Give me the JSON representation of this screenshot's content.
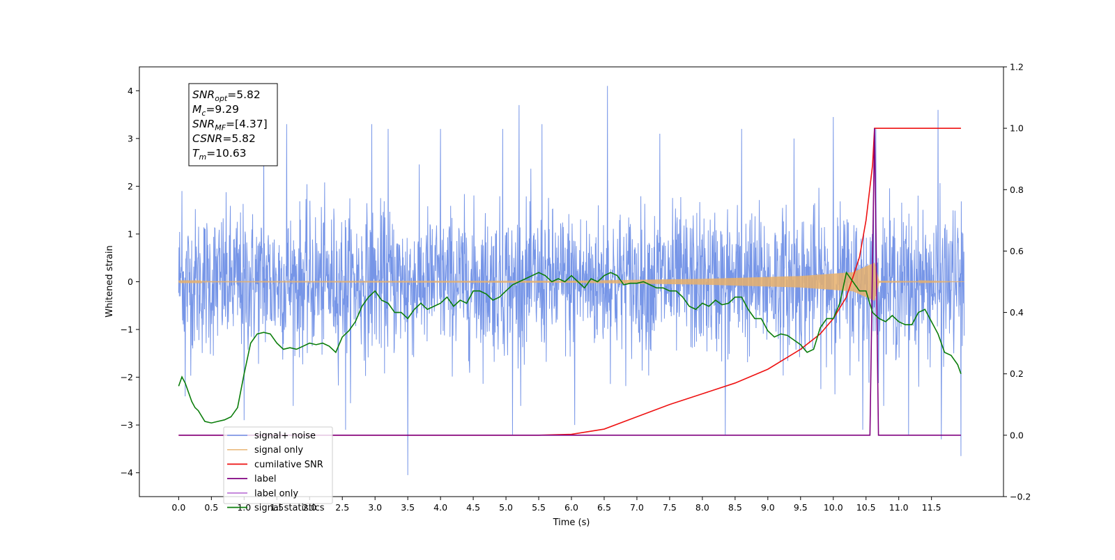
{
  "chart_data": {
    "type": "line",
    "xlabel": "Time (s)",
    "ylabel_left": "Whitened strain",
    "ylabel_right": "",
    "xlim": [
      -0.6,
      12.6
    ],
    "ylim_left": [
      -4.5,
      4.5
    ],
    "ylim_right": [
      -0.2,
      1.2
    ],
    "x_ticks": [
      "0.0",
      "0.5",
      "1.0",
      "1.5",
      "2.0",
      "2.5",
      "3.0",
      "3.5",
      "4.0",
      "4.5",
      "5.0",
      "5.5",
      "6.0",
      "6.5",
      "7.0",
      "7.5",
      "8.0",
      "8.5",
      "9.0",
      "9.5",
      "10.0",
      "10.5",
      "11.0",
      "11.5"
    ],
    "y_ticks_left": [
      "4",
      "3",
      "2",
      "1",
      "0",
      "−1",
      "−2",
      "−3",
      "−4"
    ],
    "y_ticks_right": [
      "1.2",
      "1.0",
      "0.8",
      "0.6",
      "0.4",
      "0.2",
      "0.0",
      "−0.2"
    ],
    "grid": false,
    "legend_position": "lower-left",
    "series": [
      {
        "name": "signal+ noise",
        "axis": "left",
        "color": "#6f8fe6",
        "style": "noise",
        "x_range": [
          0,
          12
        ],
        "std": 0.75,
        "spikes": [
          [
            0.05,
            1.9
          ],
          [
            0.1,
            -2.4
          ],
          [
            1.0,
            -2.9
          ],
          [
            1.3,
            3.0
          ],
          [
            1.65,
            3.3
          ],
          [
            2.55,
            -3.1
          ],
          [
            2.95,
            3.3
          ],
          [
            3.2,
            3.2
          ],
          [
            3.5,
            -4.05
          ],
          [
            4.0,
            3.2
          ],
          [
            4.95,
            3.2
          ],
          [
            5.1,
            -3.2
          ],
          [
            5.2,
            3.7
          ],
          [
            5.55,
            3.3
          ],
          [
            6.05,
            -3.0
          ],
          [
            6.55,
            4.1
          ],
          [
            7.35,
            3.1
          ],
          [
            8.35,
            -3.2
          ],
          [
            8.6,
            3.2
          ],
          [
            9.4,
            3.0
          ],
          [
            10.0,
            3.45
          ],
          [
            10.45,
            -3.1
          ],
          [
            10.65,
            3.2
          ],
          [
            11.15,
            -3.2
          ],
          [
            11.6,
            3.6
          ],
          [
            11.65,
            -3.3
          ],
          [
            11.95,
            -3.65
          ]
        ]
      },
      {
        "name": "signal only",
        "axis": "left",
        "color": "#e8b06b",
        "style": "chirp",
        "x_range": [
          0,
          12
        ],
        "merger_time": 10.63,
        "amp_points": [
          [
            0,
            0.01
          ],
          [
            6.0,
            0.02
          ],
          [
            8.0,
            0.06
          ],
          [
            9.5,
            0.12
          ],
          [
            10.3,
            0.2
          ],
          [
            10.63,
            0.4
          ],
          [
            10.7,
            0.02
          ],
          [
            12,
            0.0
          ]
        ]
      },
      {
        "name": "cumilative SNR",
        "axis": "right",
        "color": "#ee1111",
        "points": [
          [
            0.0,
            0.0
          ],
          [
            5.5,
            0.0
          ],
          [
            6.0,
            0.003
          ],
          [
            6.5,
            0.02
          ],
          [
            7.0,
            0.06
          ],
          [
            7.5,
            0.1
          ],
          [
            8.0,
            0.135
          ],
          [
            8.5,
            0.17
          ],
          [
            9.0,
            0.215
          ],
          [
            9.5,
            0.28
          ],
          [
            9.8,
            0.33
          ],
          [
            10.0,
            0.38
          ],
          [
            10.2,
            0.45
          ],
          [
            10.4,
            0.58
          ],
          [
            10.5,
            0.7
          ],
          [
            10.6,
            0.88
          ],
          [
            10.63,
            1.0
          ],
          [
            11.95,
            1.0
          ]
        ]
      },
      {
        "name": "label",
        "axis": "right",
        "color": "#800080",
        "points": [
          [
            0.0,
            0.0
          ],
          [
            10.56,
            0.0
          ],
          [
            10.63,
            1.0
          ],
          [
            10.69,
            0.0
          ],
          [
            11.95,
            0.0
          ]
        ]
      },
      {
        "name": "label only",
        "axis": "right",
        "color": "#c07ed8",
        "hidden": true,
        "points": []
      },
      {
        "name": "signal statistics",
        "axis": "right",
        "color": "#0a7d0a",
        "points": [
          [
            0.0,
            0.16
          ],
          [
            0.05,
            0.19
          ],
          [
            0.1,
            0.17
          ],
          [
            0.15,
            0.14
          ],
          [
            0.2,
            0.11
          ],
          [
            0.25,
            0.09
          ],
          [
            0.3,
            0.08
          ],
          [
            0.4,
            0.045
          ],
          [
            0.5,
            0.04
          ],
          [
            0.6,
            0.045
          ],
          [
            0.7,
            0.05
          ],
          [
            0.8,
            0.06
          ],
          [
            0.9,
            0.09
          ],
          [
            1.0,
            0.2
          ],
          [
            1.1,
            0.3
          ],
          [
            1.2,
            0.33
          ],
          [
            1.3,
            0.335
          ],
          [
            1.4,
            0.33
          ],
          [
            1.5,
            0.3
          ],
          [
            1.6,
            0.28
          ],
          [
            1.7,
            0.285
          ],
          [
            1.8,
            0.28
          ],
          [
            1.9,
            0.29
          ],
          [
            2.0,
            0.3
          ],
          [
            2.1,
            0.295
          ],
          [
            2.2,
            0.3
          ],
          [
            2.3,
            0.29
          ],
          [
            2.4,
            0.27
          ],
          [
            2.5,
            0.32
          ],
          [
            2.6,
            0.34
          ],
          [
            2.7,
            0.37
          ],
          [
            2.8,
            0.42
          ],
          [
            2.9,
            0.45
          ],
          [
            3.0,
            0.47
          ],
          [
            3.1,
            0.44
          ],
          [
            3.2,
            0.43
          ],
          [
            3.3,
            0.4
          ],
          [
            3.4,
            0.4
          ],
          [
            3.5,
            0.38
          ],
          [
            3.6,
            0.41
          ],
          [
            3.7,
            0.43
          ],
          [
            3.8,
            0.41
          ],
          [
            3.9,
            0.42
          ],
          [
            4.0,
            0.43
          ],
          [
            4.1,
            0.45
          ],
          [
            4.2,
            0.42
          ],
          [
            4.3,
            0.44
          ],
          [
            4.4,
            0.43
          ],
          [
            4.5,
            0.47
          ],
          [
            4.6,
            0.47
          ],
          [
            4.7,
            0.46
          ],
          [
            4.8,
            0.44
          ],
          [
            4.9,
            0.45
          ],
          [
            5.0,
            0.47
          ],
          [
            5.1,
            0.49
          ],
          [
            5.2,
            0.5
          ],
          [
            5.3,
            0.51
          ],
          [
            5.4,
            0.52
          ],
          [
            5.5,
            0.53
          ],
          [
            5.6,
            0.52
          ],
          [
            5.7,
            0.5
          ],
          [
            5.8,
            0.51
          ],
          [
            5.9,
            0.5
          ],
          [
            6.0,
            0.52
          ],
          [
            6.1,
            0.5
          ],
          [
            6.2,
            0.48
          ],
          [
            6.3,
            0.51
          ],
          [
            6.4,
            0.5
          ],
          [
            6.5,
            0.52
          ],
          [
            6.6,
            0.53
          ],
          [
            6.7,
            0.52
          ],
          [
            6.8,
            0.49
          ],
          [
            6.9,
            0.495
          ],
          [
            7.0,
            0.495
          ],
          [
            7.1,
            0.5
          ],
          [
            7.2,
            0.49
          ],
          [
            7.3,
            0.48
          ],
          [
            7.4,
            0.48
          ],
          [
            7.5,
            0.47
          ],
          [
            7.6,
            0.47
          ],
          [
            7.7,
            0.45
          ],
          [
            7.8,
            0.42
          ],
          [
            7.9,
            0.41
          ],
          [
            8.0,
            0.43
          ],
          [
            8.1,
            0.42
          ],
          [
            8.2,
            0.44
          ],
          [
            8.3,
            0.425
          ],
          [
            8.4,
            0.43
          ],
          [
            8.5,
            0.45
          ],
          [
            8.6,
            0.45
          ],
          [
            8.7,
            0.41
          ],
          [
            8.8,
            0.38
          ],
          [
            8.9,
            0.38
          ],
          [
            9.0,
            0.34
          ],
          [
            9.1,
            0.32
          ],
          [
            9.2,
            0.33
          ],
          [
            9.3,
            0.325
          ],
          [
            9.4,
            0.31
          ],
          [
            9.5,
            0.295
          ],
          [
            9.6,
            0.27
          ],
          [
            9.7,
            0.28
          ],
          [
            9.8,
            0.35
          ],
          [
            9.9,
            0.38
          ],
          [
            10.0,
            0.38
          ],
          [
            10.1,
            0.43
          ],
          [
            10.2,
            0.53
          ],
          [
            10.3,
            0.5
          ],
          [
            10.4,
            0.47
          ],
          [
            10.5,
            0.47
          ],
          [
            10.6,
            0.4
          ],
          [
            10.7,
            0.38
          ],
          [
            10.8,
            0.37
          ],
          [
            10.9,
            0.39
          ],
          [
            11.0,
            0.37
          ],
          [
            11.1,
            0.36
          ],
          [
            11.2,
            0.36
          ],
          [
            11.3,
            0.4
          ],
          [
            11.4,
            0.41
          ],
          [
            11.5,
            0.37
          ],
          [
            11.6,
            0.33
          ],
          [
            11.7,
            0.27
          ],
          [
            11.8,
            0.26
          ],
          [
            11.9,
            0.23
          ],
          [
            11.95,
            0.2
          ]
        ]
      }
    ],
    "annotations": [
      {
        "base": "SNR",
        "sub": "opt",
        "rest": "=5.82"
      },
      {
        "base": "M",
        "sub": "c",
        "rest": "=9.29"
      },
      {
        "base": "SNR",
        "sub": "MF",
        "rest": "=[4.37]"
      },
      {
        "base": "CSNR",
        "sub": "",
        "rest": "=5.82"
      },
      {
        "base": "T",
        "sub": "m",
        "rest": "=10.63"
      }
    ]
  }
}
